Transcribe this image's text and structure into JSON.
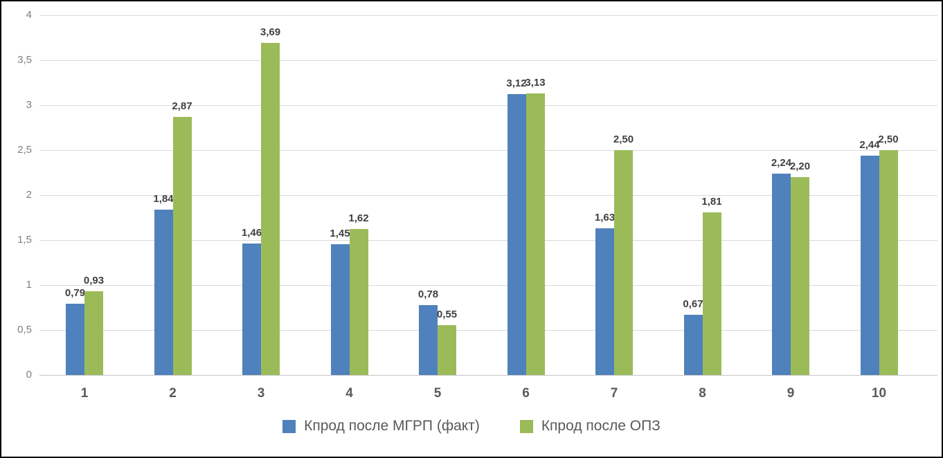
{
  "chart_data": {
    "type": "bar",
    "title": "",
    "xlabel": "",
    "ylabel": "",
    "categories": [
      "1",
      "2",
      "3",
      "4",
      "5",
      "6",
      "7",
      "8",
      "9",
      "10"
    ],
    "series": [
      {
        "name": "Кпрод после МГРП (факт)",
        "color": "#4f81bd",
        "values": [
          0.79,
          1.84,
          1.46,
          1.45,
          0.78,
          3.12,
          1.63,
          0.67,
          2.24,
          2.44
        ],
        "labels": [
          "0,79",
          "1,84",
          "1,46",
          "1,45",
          "0,78",
          "3,12",
          "1,63",
          "0,67",
          "2,24",
          "2,44"
        ]
      },
      {
        "name": "Кпрод после ОПЗ",
        "color": "#9bbb59",
        "values": [
          0.93,
          2.87,
          3.69,
          1.62,
          0.55,
          3.13,
          2.5,
          1.81,
          2.2,
          2.5
        ],
        "labels": [
          "0,93",
          "2,87",
          "3,69",
          "1,62",
          "0,55",
          "3,13",
          "2,50",
          "1,81",
          "2,20",
          "2,50"
        ]
      }
    ],
    "ylim": [
      0,
      4
    ],
    "ytick_step": 0.5,
    "ytick_labels": [
      "0",
      "0,5",
      "1",
      "1,5",
      "2",
      "2,5",
      "3",
      "3,5",
      "4"
    ],
    "grid": true,
    "gridline_color": "#d9d9d9",
    "label_color": "#404040",
    "axis_text_color": "#595959",
    "legend_position": "bottom"
  }
}
